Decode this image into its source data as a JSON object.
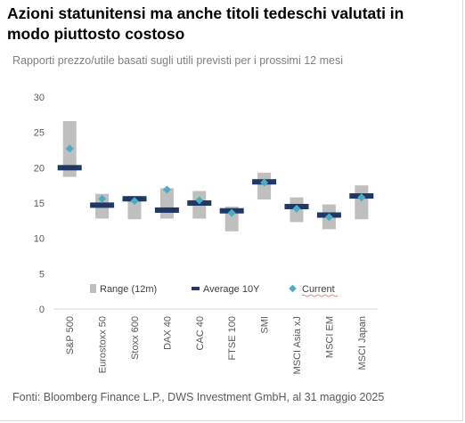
{
  "chart_data": {
    "type": "range-dot",
    "title": "Azioni statunitensi ma anche titoli tedeschi valutati in modo piuttosto costoso",
    "subtitle": "Rapporti prezzo/utile basati sugli utili previsti per i prossimi 12 mesi",
    "source": "Fonti: Bloomberg Finance L.P., DWS Investment GmbH, al 31 maggio 2025",
    "categories": [
      "S&P 500",
      "Eurostoxx 50",
      "Stoxx 600",
      "DAX 40",
      "CAC 40",
      "FTSE 100",
      "SMI",
      "MSCI Asia xJ",
      "MSCI EM",
      "MSCI Japan"
    ],
    "ylim": [
      0,
      30
    ],
    "yticks": [
      0,
      5,
      10,
      15,
      20,
      25,
      30
    ],
    "grid": false,
    "legend_position": "bottom-inside",
    "series": [
      {
        "name": "Range (12m)",
        "kind": "range-bar",
        "color": "#bfbfbf",
        "low": [
          18.7,
          12.8,
          12.7,
          12.8,
          12.8,
          11.0,
          15.5,
          12.3,
          11.3,
          12.7
        ],
        "high": [
          26.6,
          16.3,
          16.0,
          17.1,
          16.7,
          14.5,
          19.3,
          15.8,
          14.8,
          17.5
        ]
      },
      {
        "name": "Average 10Y",
        "kind": "marker-dash",
        "color": "#1f3864",
        "values": [
          20.0,
          14.7,
          15.6,
          14.0,
          15.0,
          13.9,
          18.0,
          14.5,
          13.3,
          16.0
        ]
      },
      {
        "name": "Current",
        "kind": "marker-diamond",
        "color": "#4bacc6",
        "values": [
          22.7,
          15.6,
          15.3,
          16.9,
          15.4,
          13.6,
          17.9,
          14.2,
          13.0,
          15.8
        ]
      }
    ]
  }
}
